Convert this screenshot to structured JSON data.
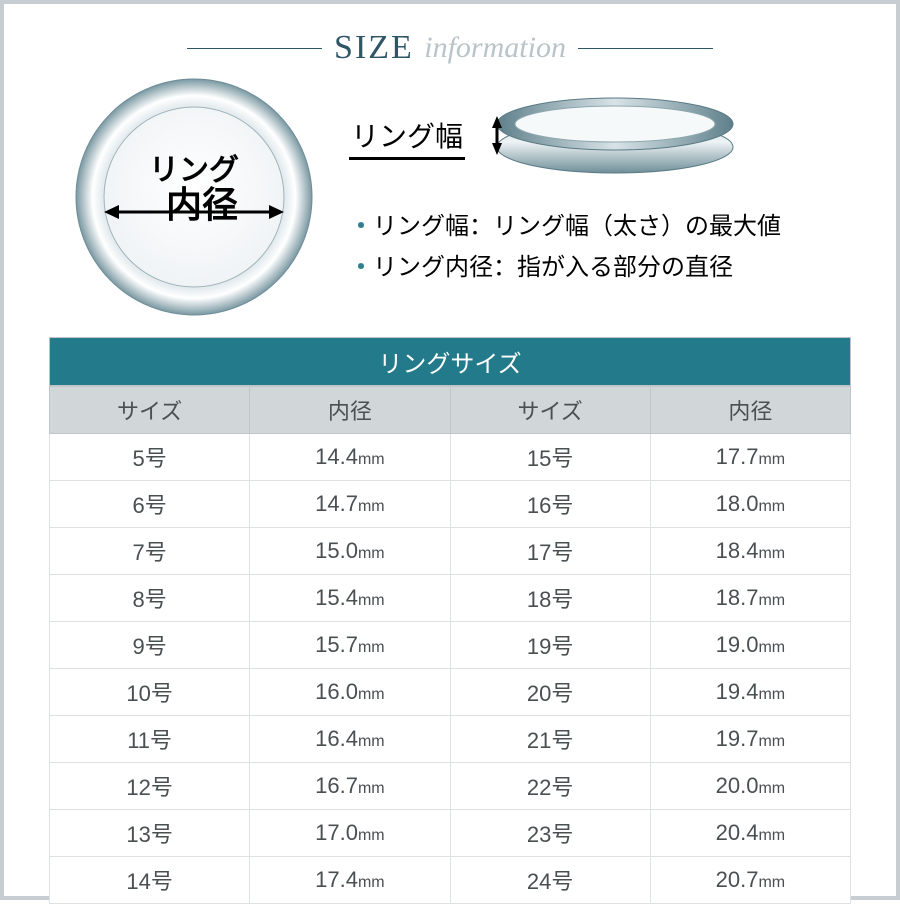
{
  "title": {
    "part1": "SIZE",
    "part2": "information"
  },
  "diagram": {
    "diameter_label_line1": "リング",
    "diameter_label_line2": "内径",
    "width_label": "リング幅"
  },
  "description": {
    "line1": "・リング幅：リング幅（太さ）の最大値",
    "line2": "・リング内径：指が入る部分の直径"
  },
  "table": {
    "title": "リングサイズ",
    "columns": [
      "サイズ",
      "内径",
      "サイズ",
      "内径"
    ],
    "unit": "mm",
    "rows": [
      {
        "size1": "5号",
        "dia1": "14.4",
        "size2": "15号",
        "dia2": "17.7"
      },
      {
        "size1": "6号",
        "dia1": "14.7",
        "size2": "16号",
        "dia2": "18.0"
      },
      {
        "size1": "7号",
        "dia1": "15.0",
        "size2": "17号",
        "dia2": "18.4"
      },
      {
        "size1": "8号",
        "dia1": "15.4",
        "size2": "18号",
        "dia2": "18.7"
      },
      {
        "size1": "9号",
        "dia1": "15.7",
        "size2": "19号",
        "dia2": "19.0"
      },
      {
        "size1": "10号",
        "dia1": "16.0",
        "size2": "20号",
        "dia2": "19.4"
      },
      {
        "size1": "11号",
        "dia1": "16.4",
        "size2": "21号",
        "dia2": "19.7"
      },
      {
        "size1": "12号",
        "dia1": "16.7",
        "size2": "22号",
        "dia2": "20.0"
      },
      {
        "size1": "13号",
        "dia1": "17.0",
        "size2": "23号",
        "dia2": "20.4"
      },
      {
        "size1": "14号",
        "dia1": "17.4",
        "size2": "24号",
        "dia2": "20.7"
      }
    ]
  },
  "colors": {
    "frame_border": "#c7cdd0",
    "title_main": "#2e5665",
    "title_sub": "#b9c4c8",
    "table_header_bg": "#237a8a",
    "table_subheader_bg": "#d1d6d8",
    "cell_border": "#dde1e3",
    "text": "#4a4f52",
    "bullet": "#2e808f"
  }
}
